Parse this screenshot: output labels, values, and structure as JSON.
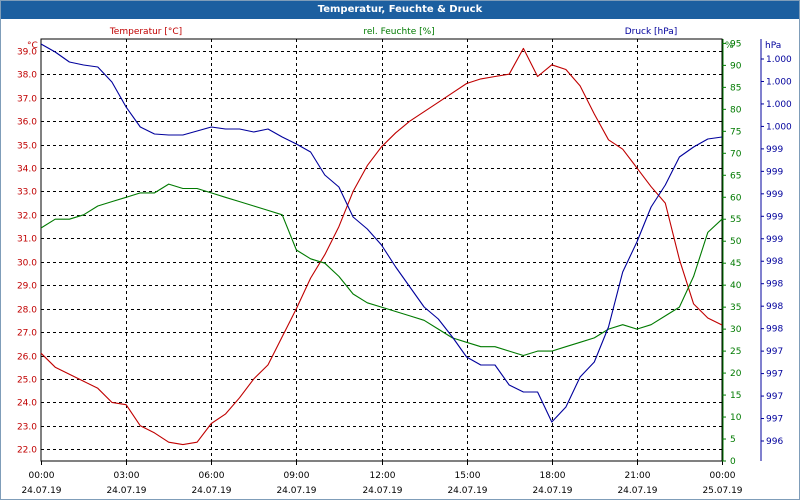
{
  "window": {
    "title": "Temperatur, Feuchte & Druck"
  },
  "chart_data": {
    "type": "line",
    "title": "Temperatur, Feuchte & Druck",
    "grid": true,
    "colors": {
      "temperature": "#c00000",
      "humidity": "#007a00",
      "pressure": "#00009c",
      "grid": "#000000",
      "axis_left": "#c00000",
      "axis_right_humidity": "#007a00",
      "axis_right_pressure": "#00009c",
      "xaxis": "#000000",
      "title_bar": "#1c5fa0"
    },
    "x_ticks": [
      {
        "time": "00:00",
        "date": "24.07.19"
      },
      {
        "time": "03:00",
        "date": "24.07.19"
      },
      {
        "time": "06:00",
        "date": "24.07.19"
      },
      {
        "time": "09:00",
        "date": "24.07.19"
      },
      {
        "time": "12:00",
        "date": "24.07.19"
      },
      {
        "time": "15:00",
        "date": "24.07.19"
      },
      {
        "time": "18:00",
        "date": "24.07.19"
      },
      {
        "time": "21:00",
        "date": "24.07.19"
      },
      {
        "time": "00:00",
        "date": "25.07.19"
      }
    ],
    "xlim": [
      0,
      24
    ],
    "axes": {
      "left": {
        "label": "Temperatur [°C]",
        "unit": "°C",
        "ylim": [
          21.5,
          39.5
        ],
        "ticks": [
          "22.0",
          "23.0",
          "24.0",
          "25.0",
          "26.0",
          "27.0",
          "28.0",
          "29.0",
          "30.0",
          "31.0",
          "32.0",
          "33.0",
          "34.0",
          "35.0",
          "36.0",
          "37.0",
          "38.0",
          "39.0"
        ]
      },
      "right1": {
        "label": "rel. Feuchte [%]",
        "unit": "%",
        "ylim": [
          0,
          96
        ],
        "ticks": [
          "0",
          "5",
          "10",
          "15",
          "20",
          "25",
          "30",
          "35",
          "40",
          "45",
          "50",
          "55",
          "60",
          "65",
          "70",
          "75",
          "80",
          "85",
          "90",
          "95"
        ]
      },
      "right2": {
        "label": "Druck [hPa]",
        "unit": "hPa",
        "ylim": [
          995.86,
          1000.08
        ],
        "ticks": [
          "996",
          "997",
          "997",
          "997",
          "997",
          "998",
          "998",
          "998",
          "998",
          "999",
          "999",
          "999",
          "999",
          "999",
          "1.000",
          "1.000",
          "1.000",
          "1.000"
        ]
      }
    },
    "series": [
      {
        "name": "Temperatur [°C]",
        "axis": "left",
        "color": "#c00000",
        "x": [
          0,
          0.5,
          1,
          1.5,
          2,
          2.5,
          3,
          3.5,
          4,
          4.5,
          5,
          5.5,
          6,
          6.5,
          7,
          7.5,
          8,
          8.5,
          9,
          9.5,
          10,
          10.5,
          11,
          11.5,
          12,
          12.5,
          13,
          13.5,
          14,
          14.5,
          15,
          15.5,
          16,
          16.5,
          17,
          17.5,
          18,
          18.5,
          19,
          19.5,
          20,
          20.5,
          21,
          21.5,
          22,
          22.5,
          23,
          23.5,
          24
        ],
        "values": [
          26.1,
          25.5,
          25.2,
          24.9,
          24.6,
          24.0,
          23.9,
          23.0,
          22.7,
          22.3,
          22.2,
          22.3,
          23.1,
          23.5,
          24.2,
          25.0,
          25.6,
          26.8,
          28.0,
          29.3,
          30.3,
          31.5,
          33.0,
          34.1,
          34.9,
          35.5,
          36.0,
          36.4,
          36.8,
          37.2,
          37.6,
          37.8,
          37.9,
          38.0,
          39.1,
          37.9,
          38.4,
          38.2,
          37.5,
          36.3,
          35.2,
          34.8,
          34.0,
          33.2,
          32.5,
          30.1,
          28.2,
          27.6,
          27.3
        ]
      },
      {
        "name": "rel. Feuchte [%]",
        "axis": "right1",
        "color": "#007a00",
        "x": [
          0,
          0.5,
          1,
          1.5,
          2,
          2.5,
          3,
          3.5,
          4,
          4.5,
          5,
          5.5,
          6,
          6.5,
          7,
          7.5,
          8,
          8.5,
          9,
          9.5,
          10,
          10.5,
          11,
          11.5,
          12,
          12.5,
          13,
          13.5,
          14,
          14.5,
          15,
          15.5,
          16,
          16.5,
          17,
          17.5,
          18,
          18.5,
          19,
          19.5,
          20,
          20.5,
          21,
          21.5,
          22,
          22.5,
          23,
          23.5,
          24
        ],
        "values": [
          53,
          55,
          55,
          56,
          58,
          59,
          60,
          61,
          61,
          63,
          62,
          62,
          61,
          60,
          59,
          58,
          57,
          56,
          48,
          46,
          45,
          42,
          38,
          36,
          35,
          34,
          33,
          32,
          30,
          28,
          27,
          26,
          26,
          25,
          24,
          25,
          25,
          26,
          27,
          28,
          30,
          31,
          30,
          31,
          33,
          35,
          42,
          52,
          55
        ]
      },
      {
        "name": "Druck [hPa]",
        "axis": "right2",
        "color": "#00009c",
        "x": [
          0,
          0.5,
          1,
          1.5,
          2,
          2.5,
          3,
          3.5,
          4,
          4.5,
          5,
          5.5,
          6,
          6.5,
          7,
          7.5,
          8,
          8.5,
          9,
          9.5,
          10,
          10.5,
          11,
          11.5,
          12,
          12.5,
          13,
          13.5,
          14,
          14.5,
          15,
          15.5,
          16,
          16.5,
          17,
          17.5,
          18,
          18.5,
          19,
          19.5,
          20,
          20.5,
          21,
          21.5,
          22,
          22.5,
          23,
          23.5,
          24
        ],
        "values": [
          1000.03,
          999.95,
          999.85,
          999.82,
          999.8,
          999.65,
          999.4,
          999.2,
          999.13,
          999.12,
          999.12,
          999.16,
          999.2,
          999.18,
          999.18,
          999.15,
          999.18,
          999.1,
          999.03,
          998.95,
          998.72,
          998.6,
          998.3,
          998.18,
          998.02,
          997.8,
          997.6,
          997.4,
          997.28,
          997.1,
          996.9,
          996.82,
          996.82,
          996.62,
          996.55,
          996.55,
          996.25,
          996.4,
          996.7,
          996.85,
          997.2,
          997.75,
          998.05,
          998.4,
          998.62,
          998.9,
          999.0,
          999.08,
          999.1
        ]
      }
    ]
  }
}
